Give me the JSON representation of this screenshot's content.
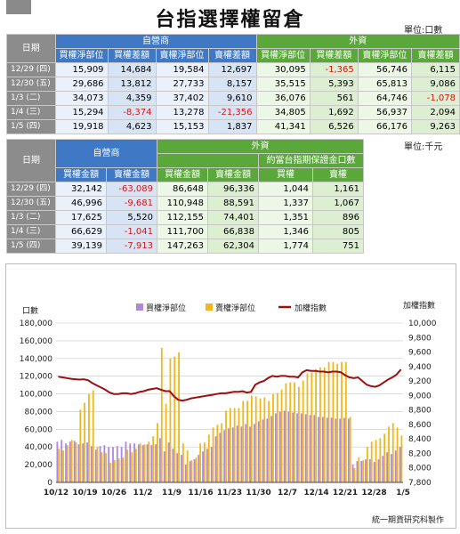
{
  "title": "台指選擇權留倉",
  "units": {
    "top": "單位:口數",
    "mid": "單位:千元"
  },
  "footer": "統一期貨研究科製作",
  "table1": {
    "date_header": "日期",
    "group_dealer": "自營商",
    "group_foreign": "外資",
    "cols": [
      "買權淨部位",
      "買權差額",
      "賣權淨部位",
      "賣權差額",
      "買權淨部位",
      "買權差額",
      "賣權淨部位",
      "賣權差額"
    ],
    "rows": [
      {
        "date": "12/29",
        "wd": "(四)",
        "v": [
          "15,909",
          "14,684",
          "19,584",
          "12,697",
          "30,095",
          "-1,365",
          "56,746",
          "6,115"
        ]
      },
      {
        "date": "12/30",
        "wd": "(五)",
        "v": [
          "29,686",
          "13,812",
          "27,733",
          "8,157",
          "35,515",
          "5,393",
          "65,813",
          "9,086"
        ]
      },
      {
        "date": "1/3",
        "wd": "(二)",
        "v": [
          "34,073",
          "4,359",
          "37,402",
          "9,610",
          "36,076",
          "561",
          "64,746",
          "-1,078"
        ]
      },
      {
        "date": "1/4",
        "wd": "(三)",
        "v": [
          "15,294",
          "-8,374",
          "13,278",
          "-21,356",
          "34,805",
          "1,692",
          "56,937",
          "2,094"
        ]
      },
      {
        "date": "1/5",
        "wd": "(四)",
        "v": [
          "19,918",
          "4,623",
          "15,153",
          "1,837",
          "41,341",
          "6,526",
          "66,176",
          "9,263"
        ]
      }
    ]
  },
  "table2": {
    "date_header": "日期",
    "group_dealer": "自營商",
    "group_foreign": "外資",
    "sub_header": "約當台指期保證金口數",
    "cols": [
      "買權金額",
      "賣權金額",
      "買權金額",
      "賣權金額",
      "買權",
      "賣權"
    ],
    "rows": [
      {
        "date": "12/29",
        "wd": "(四)",
        "v": [
          "32,142",
          "-63,089",
          "86,648",
          "96,336",
          "1,044",
          "1,161"
        ]
      },
      {
        "date": "12/30",
        "wd": "(五)",
        "v": [
          "46,996",
          "-9,681",
          "110,948",
          "88,591",
          "1,337",
          "1,067"
        ]
      },
      {
        "date": "1/3",
        "wd": "(二)",
        "v": [
          "17,625",
          "5,520",
          "112,155",
          "74,401",
          "1,351",
          "896"
        ]
      },
      {
        "date": "1/4",
        "wd": "(三)",
        "v": [
          "66,629",
          "-1,041",
          "111,700",
          "66,838",
          "1,346",
          "805"
        ]
      },
      {
        "date": "1/5",
        "wd": "(四)",
        "v": [
          "39,139",
          "-7,913",
          "147,263",
          "62,304",
          "1,774",
          "751"
        ]
      }
    ]
  },
  "chart_data": {
    "type": "bar",
    "ylabel_left": "口數",
    "ylabel_right": "加權指數",
    "ylim_left": [
      0,
      180000
    ],
    "ylim_right": [
      7800,
      10000
    ],
    "yticks_left": [
      "0",
      "20,000",
      "40,000",
      "60,000",
      "80,000",
      "100,000",
      "120,000",
      "140,000",
      "160,000",
      "180,000"
    ],
    "yticks_right": [
      "7,800",
      "8,000",
      "8,200",
      "8,400",
      "8,600",
      "8,800",
      "9,000",
      "9,200",
      "9,400",
      "9,600",
      "9,800",
      "10,000"
    ],
    "xticks": [
      "10/12",
      "10/19",
      "10/26",
      "11/2",
      "11/9",
      "11/16",
      "11/23",
      "11/30",
      "12/7",
      "12/14",
      "12/21",
      "12/28",
      "1/5"
    ],
    "legend_position": "top",
    "colors": {
      "call": "#b088d8",
      "put": "#f0b81e",
      "index": "#9a1010",
      "grid": "#c8c8c8"
    },
    "series": [
      {
        "name": "買權淨部位",
        "values": [
          46000,
          48000,
          44000,
          46000,
          47000,
          43000,
          44000,
          45000,
          41000,
          37000,
          41000,
          42000,
          40000,
          40000,
          41000,
          40000,
          46000,
          44000,
          44000,
          43000,
          42000,
          43000,
          42000,
          43000,
          50000,
          35000,
          45000,
          38000,
          33000,
          31000,
          20000,
          24000,
          26000,
          31000,
          35000,
          38000,
          40000,
          52000,
          56000,
          59000,
          61000,
          62000,
          64000,
          63000,
          66000,
          63000,
          66000,
          69000,
          71000,
          72000,
          75000,
          78000,
          80000,
          81000,
          80000,
          79000,
          78000,
          78000,
          77000,
          76000,
          76000,
          74000,
          74000,
          73000,
          73000,
          72000,
          72000,
          73000,
          72000,
          20000,
          24000,
          24000,
          26000,
          26000,
          23000,
          26000,
          30000,
          34000,
          32000,
          36000,
          40000
        ]
      },
      {
        "name": "賣權淨部位",
        "values": [
          38000,
          36000,
          42000,
          48000,
          45000,
          82000,
          90000,
          100000,
          104000,
          40000,
          34000,
          33000,
          22000,
          25000,
          27000,
          28000,
          37000,
          34000,
          38000,
          44000,
          43000,
          46000,
          52000,
          67000,
          152000,
          89000,
          140000,
          142000,
          147000,
          44000,
          36000,
          25000,
          28000,
          44000,
          45000,
          54000,
          62000,
          65000,
          67000,
          81000,
          84000,
          84000,
          84000,
          92000,
          92000,
          98000,
          97000,
          95000,
          96000,
          92000,
          100000,
          101000,
          105000,
          112000,
          113000,
          113000,
          108000,
          115000,
          123000,
          124000,
          128000,
          130000,
          130000,
          136000,
          136000,
          134000,
          136000,
          136000,
          74000,
          16000,
          28000,
          25000,
          40000,
          46000,
          48000,
          50000,
          55000,
          63000,
          67000,
          62000,
          53000
        ]
      },
      {
        "name": "加權指數",
        "values": [
          9260,
          9250,
          9240,
          9230,
          9225,
          9220,
          9225,
          9210,
          9170,
          9140,
          9110,
          9080,
          9040,
          9020,
          9020,
          9030,
          9030,
          9020,
          9030,
          9050,
          9060,
          9080,
          9090,
          9100,
          9080,
          9060,
          9060,
          8990,
          8940,
          8930,
          8940,
          8960,
          8970,
          8980,
          8990,
          9000,
          9010,
          9020,
          9030,
          9030,
          9040,
          9050,
          9050,
          9060,
          9040,
          9050,
          9150,
          9180,
          9200,
          9240,
          9270,
          9260,
          9270,
          9270,
          9260,
          9260,
          9250,
          9320,
          9350,
          9340,
          9340,
          9330,
          9330,
          9320,
          9330,
          9330,
          9320,
          9280,
          9250,
          9240,
          9250,
          9200,
          9150,
          9130,
          9120,
          9140,
          9180,
          9220,
          9250,
          9290,
          9360
        ]
      }
    ]
  }
}
